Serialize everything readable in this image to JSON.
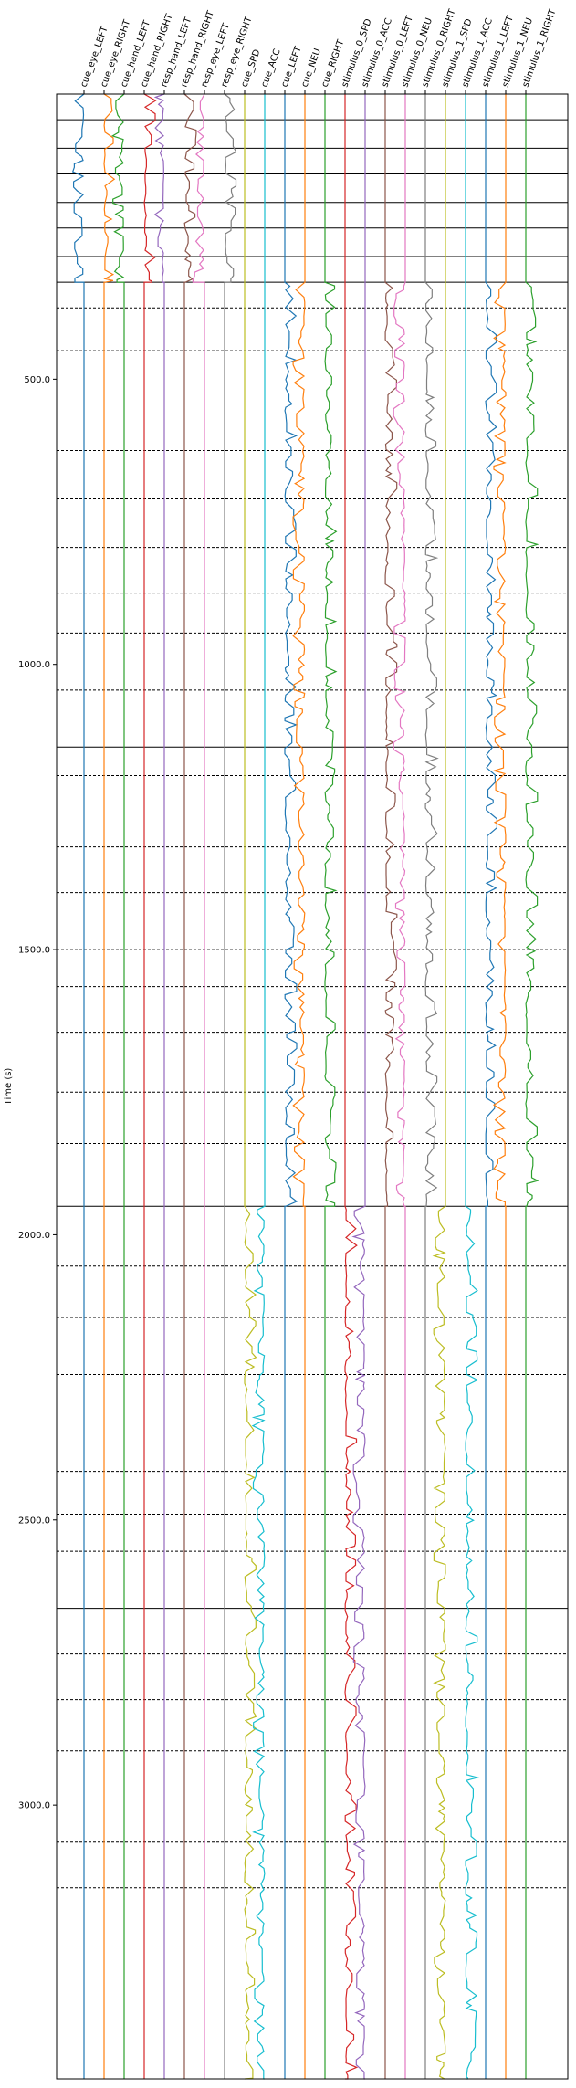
{
  "chart_data": {
    "type": "line",
    "title": "",
    "xlabel": "",
    "ylabel": "Time (s)",
    "ylim": [
      3480,
      0
    ],
    "y_ticks": [
      500,
      1000,
      1500,
      2000,
      2500,
      3000
    ],
    "y_tick_labels": [
      "500.0",
      "1000.0",
      "1500.0",
      "2000.0",
      "2500.0",
      "3000.0"
    ],
    "grid": false,
    "channels": [
      {
        "name": "cue_eye_LEFT",
        "color": "#1f77b4",
        "group": "a",
        "side": 1
      },
      {
        "name": "cue_eye_RIGHT",
        "color": "#ff7f0e",
        "group": "a",
        "side": 0
      },
      {
        "name": "cue_hand_LEFT",
        "color": "#2ca02c",
        "group": "a",
        "side": 1
      },
      {
        "name": "cue_hand_RIGHT",
        "color": "#d62728",
        "group": "a",
        "side": 0
      },
      {
        "name": "resp_hand_LEFT",
        "color": "#9467bd",
        "group": "a",
        "side": 1
      },
      {
        "name": "resp_hand_RIGHT",
        "color": "#8c564b",
        "group": "a",
        "side": 0
      },
      {
        "name": "resp_eye_LEFT",
        "color": "#e377c2",
        "group": "a",
        "side": 1
      },
      {
        "name": "resp_eye_RIGHT",
        "color": "#7f7f7f",
        "group": "a",
        "side": 0
      },
      {
        "name": "cue_SPD",
        "color": "#bcbd22",
        "group": "c",
        "side": 0
      },
      {
        "name": "cue_ACC",
        "color": "#17becf",
        "group": "c",
        "side": 1
      },
      {
        "name": "cue_LEFT",
        "color": "#1f77b4",
        "group": "b",
        "side": 0
      },
      {
        "name": "cue_NEU",
        "color": "#ff7f0e",
        "group": "b",
        "side": 1
      },
      {
        "name": "cue_RIGHT",
        "color": "#2ca02c",
        "group": "b",
        "side": 0
      },
      {
        "name": "stimulus_0_SPD",
        "color": "#d62728",
        "group": "c",
        "side": 0
      },
      {
        "name": "stimulus_0_ACC",
        "color": "#9467bd",
        "group": "c",
        "side": 1
      },
      {
        "name": "stimulus_0_LEFT",
        "color": "#8c564b",
        "group": "b",
        "side": 0
      },
      {
        "name": "stimulus_0_NEU",
        "color": "#e377c2",
        "group": "b",
        "side": 1
      },
      {
        "name": "stimulus_0_RIGHT",
        "color": "#7f7f7f",
        "group": "b",
        "side": 0
      },
      {
        "name": "stimulus_1_SPD",
        "color": "#bcbd22",
        "group": "c",
        "side": 1
      },
      {
        "name": "stimulus_1_ACC",
        "color": "#17becf",
        "group": "c",
        "side": 0
      },
      {
        "name": "stimulus_1_LEFT",
        "color": "#1f77b4",
        "group": "b",
        "side": 0
      },
      {
        "name": "stimulus_1_NEU",
        "color": "#ff7f0e",
        "group": "b",
        "side": 1
      },
      {
        "name": "stimulus_1_RIGHT",
        "color": "#2ca02c",
        "group": "b",
        "side": 0
      }
    ],
    "segments": [
      {
        "group": "a",
        "start": 0,
        "end": 330
      },
      {
        "group": "b",
        "start": 330,
        "end": 1950
      },
      {
        "group": "c",
        "start": 1950,
        "end": 3480
      }
    ],
    "solid_lines": [
      45,
      95,
      140,
      190,
      235,
      285,
      330,
      1145,
      1950,
      2655
    ],
    "dashed_lines": [
      375,
      450,
      625,
      710,
      795,
      875,
      945,
      1045,
      1195,
      1320,
      1400,
      1500,
      1565,
      1645,
      1750,
      1840,
      2055,
      2145,
      2245,
      2415,
      2490,
      2555,
      2735,
      2815,
      2905,
      3065,
      3145
    ]
  }
}
